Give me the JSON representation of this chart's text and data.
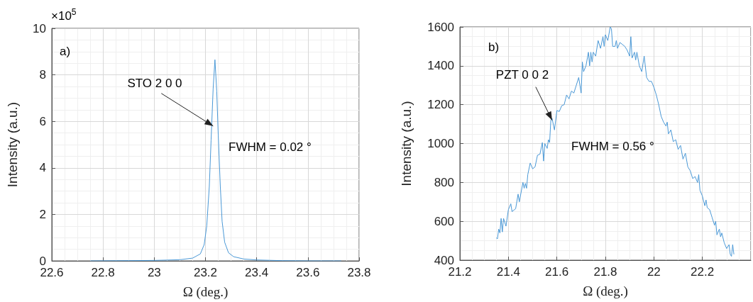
{
  "chart_data": [
    {
      "type": "line",
      "xlabel": "Ω (deg.)",
      "ylabel": "Intensity (a.u.)",
      "annotations": [
        "×10$^{5}$",
        "a)",
        {
          "text": "STO 2 0 0",
          "x": 23.23,
          "y": 5.8
        },
        "FWHM = 0.02 °"
      ],
      "x": [
        22.75,
        22.9,
        23.0,
        23.1,
        23.15,
        23.18,
        23.195,
        23.205,
        23.215,
        23.222,
        23.23,
        23.237,
        23.244,
        23.25,
        23.258,
        23.265,
        23.275,
        23.29,
        23.31,
        23.35,
        23.4,
        23.5,
        23.6,
        23.73
      ],
      "values": [
        0,
        0.01,
        0.02,
        0.05,
        0.12,
        0.3,
        0.7,
        1.5,
        3.2,
        5.2,
        7.4,
        8.65,
        7.3,
        5.4,
        3.2,
        1.7,
        0.8,
        0.35,
        0.18,
        0.08,
        0.04,
        0.01,
        0,
        0
      ],
      "color": "#4a98d6",
      "xlim": [
        22.6,
        23.8
      ],
      "ylim": [
        0,
        10
      ],
      "xticks": [
        22.6,
        22.8,
        23,
        23.2,
        23.4,
        23.6,
        23.8
      ],
      "yticks": [
        0,
        2,
        4,
        6,
        8,
        10
      ],
      "grid": true
    },
    {
      "type": "line",
      "xlabel": "Ω (deg.)",
      "ylabel": "Intensity (a.u.)",
      "annotations": [
        "b)",
        {
          "text": "PZT 0 0 2",
          "x": 21.58,
          "y": 1120
        },
        "FWHM = 0.56 °"
      ],
      "x": [
        21.35,
        21.355,
        21.36,
        21.365,
        21.37,
        21.375,
        21.38,
        21.39,
        21.4,
        21.41,
        21.415,
        21.43,
        21.44,
        21.445,
        21.46,
        21.465,
        21.47,
        21.475,
        21.48,
        21.49,
        21.5,
        21.51,
        21.52,
        21.53,
        21.54,
        21.545,
        21.55,
        21.56,
        21.565,
        21.57,
        21.575,
        21.58,
        21.585,
        21.59,
        21.6,
        21.61,
        21.62,
        21.63,
        21.64,
        21.65,
        21.66,
        21.67,
        21.68,
        21.69,
        21.695,
        21.7,
        21.705,
        21.71,
        21.72,
        21.73,
        21.735,
        21.74,
        21.745,
        21.75,
        21.76,
        21.77,
        21.78,
        21.79,
        21.795,
        21.8,
        21.81,
        21.82,
        21.825,
        21.83,
        21.84,
        21.845,
        21.85,
        21.86,
        21.87,
        21.88,
        21.89,
        21.9,
        21.905,
        21.91,
        21.92,
        21.925,
        21.93,
        21.94,
        21.95,
        21.96,
        21.97,
        21.98,
        21.99,
        22.0,
        22.01,
        22.02,
        22.03,
        22.04,
        22.05,
        22.055,
        22.06,
        22.07,
        22.08,
        22.09,
        22.1,
        22.11,
        22.12,
        22.13,
        22.14,
        22.15,
        22.16,
        22.17,
        22.18,
        22.185,
        22.19,
        22.2,
        22.21,
        22.215,
        22.22,
        22.23,
        22.24,
        22.25,
        22.255,
        22.26,
        22.27,
        22.275,
        22.28,
        22.29,
        22.3,
        22.31,
        22.315,
        22.32,
        22.325,
        22.33
      ],
      "values": [
        515,
        510,
        560,
        540,
        615,
        545,
        615,
        575,
        660,
        690,
        650,
        665,
        740,
        700,
        800,
        770,
        795,
        770,
        840,
        900,
        870,
        880,
        940,
        945,
        1005,
        910,
        1000,
        975,
        1020,
        1005,
        1120,
        1130,
        1100,
        1070,
        1170,
        1165,
        1195,
        1200,
        1250,
        1230,
        1270,
        1260,
        1300,
        1340,
        1300,
        1260,
        1420,
        1370,
        1400,
        1470,
        1400,
        1470,
        1420,
        1470,
        1450,
        1530,
        1490,
        1550,
        1500,
        1560,
        1530,
        1600,
        1590,
        1500,
        1500,
        1530,
        1490,
        1520,
        1510,
        1500,
        1480,
        1450,
        1550,
        1440,
        1470,
        1430,
        1470,
        1400,
        1370,
        1450,
        1340,
        1320,
        1320,
        1290,
        1250,
        1200,
        1140,
        1110,
        1090,
        1110,
        1050,
        1070,
        1010,
        1020,
        970,
        990,
        920,
        950,
        880,
        860,
        820,
        830,
        800,
        840,
        760,
        730,
        680,
        710,
        670,
        660,
        620,
        580,
        600,
        530,
        560,
        520,
        540,
        490,
        460,
        480,
        430,
        420,
        480,
        430
      ],
      "color": "#4a98d6",
      "xlim": [
        21.2,
        22.4
      ],
      "ylim": [
        400,
        1600
      ],
      "xticks": [
        21.2,
        21.4,
        21.6,
        21.8,
        22,
        22.2
      ],
      "yticks": [
        400,
        600,
        800,
        1000,
        1200,
        1400,
        1600
      ],
      "grid": true
    }
  ]
}
